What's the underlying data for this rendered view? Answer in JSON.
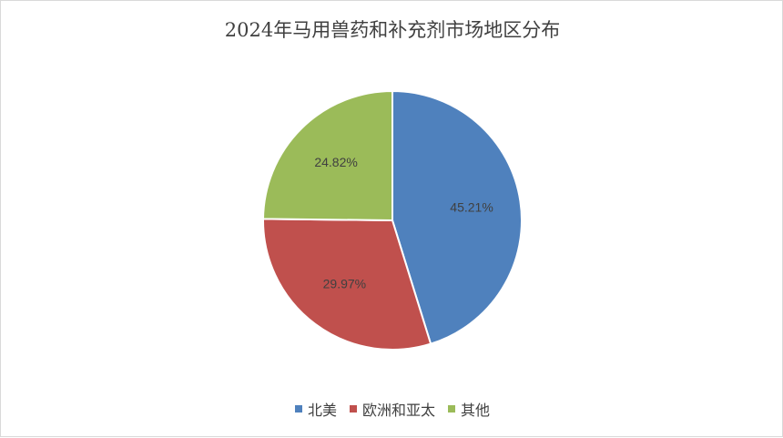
{
  "chart_data": {
    "type": "pie",
    "title": "2024年马用兽药和补充剂市场地区分布",
    "categories": [
      "北美",
      "欧洲和亚太",
      "其他"
    ],
    "values": [
      45.21,
      29.97,
      24.82
    ],
    "labels": [
      "45.21%",
      "29.97%",
      "24.82%"
    ],
    "colors": [
      "#4f81bd",
      "#c0504d",
      "#9bbb59"
    ],
    "legend_position": "bottom"
  }
}
